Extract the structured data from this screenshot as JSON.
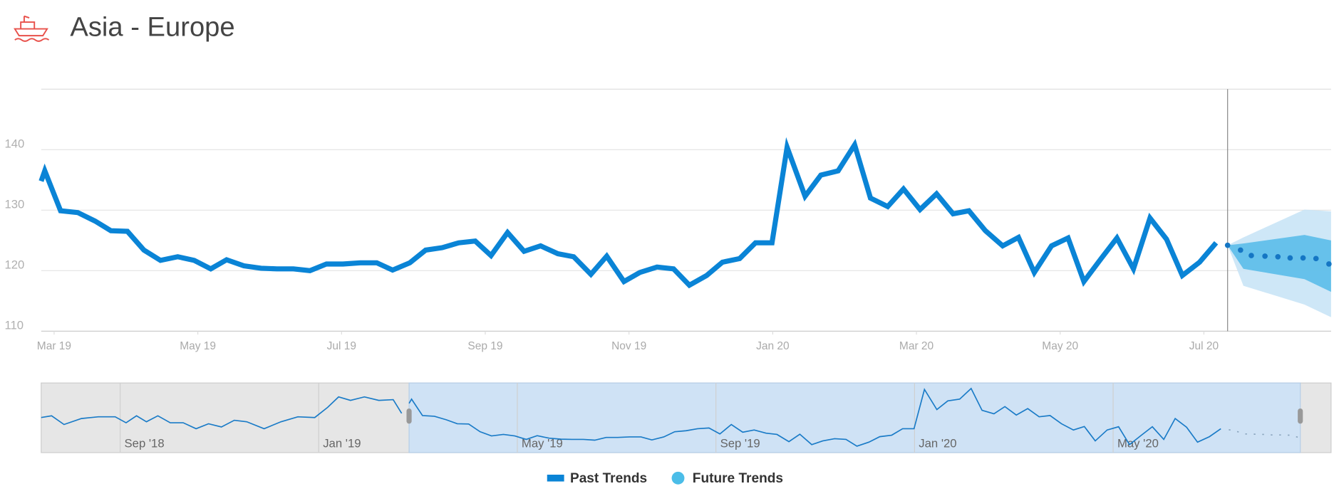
{
  "chart_data": {
    "type": "line",
    "title": "Asia - Europe",
    "xlim": [
      -0.18,
      17.77
    ],
    "ylim": [
      110,
      150
    ],
    "yticks": [
      110,
      120,
      130,
      140
    ],
    "xticks": [
      {
        "value": 0,
        "label": "Mar 19"
      },
      {
        "value": 2,
        "label": "May 19"
      },
      {
        "value": 4,
        "label": "Jul 19"
      },
      {
        "value": 6,
        "label": "Sep 19"
      },
      {
        "value": 8,
        "label": "Nov 19"
      },
      {
        "value": 10,
        "label": "Jan 20"
      },
      {
        "value": 12,
        "label": "Mar 20"
      },
      {
        "value": 14,
        "label": "May 20"
      },
      {
        "value": 16,
        "label": "Jul 20"
      }
    ],
    "grid": true,
    "series": [
      {
        "name": "Past Trends",
        "color": "#0a84d6",
        "x": [
          -0.18,
          -0.13,
          0.09,
          0.33,
          0.57,
          0.79,
          1.02,
          1.25,
          1.48,
          1.72,
          1.95,
          2.18,
          2.4,
          2.64,
          2.88,
          3.1,
          3.33,
          3.56,
          3.79,
          4.02,
          4.26,
          4.49,
          4.71,
          4.95,
          5.17,
          5.4,
          5.63,
          5.86,
          6.08,
          6.31,
          6.54,
          6.77,
          7.01,
          7.23,
          7.47,
          7.69,
          7.93,
          8.15,
          8.39,
          8.62,
          8.84,
          9.08,
          9.3,
          9.54,
          9.76,
          9.99,
          10.2,
          10.45,
          10.67,
          10.91,
          11.14,
          11.36,
          11.6,
          11.82,
          12.05,
          12.28,
          12.51,
          12.73,
          12.96,
          13.2,
          13.42,
          13.64,
          13.88,
          14.11,
          14.33,
          14.57,
          14.79,
          15.02,
          15.25,
          15.48,
          15.7,
          15.94,
          16.17
        ],
        "values": [
          134.8,
          136.5,
          129.9,
          129.6,
          128.2,
          126.6,
          126.5,
          123.4,
          121.7,
          122.3,
          121.7,
          120.3,
          121.8,
          120.8,
          120.4,
          120.3,
          120.3,
          120.0,
          121.1,
          121.1,
          121.3,
          121.3,
          120.1,
          121.3,
          123.4,
          123.8,
          124.6,
          124.9,
          122.5,
          126.3,
          123.2,
          124.1,
          122.8,
          122.3,
          119.4,
          122.4,
          118.2,
          119.7,
          120.6,
          120.3,
          117.6,
          119.2,
          121.4,
          122.0,
          124.6,
          124.6,
          140.4,
          132.3,
          135.8,
          136.5,
          140.8,
          132.0,
          130.6,
          133.5,
          130.1,
          132.7,
          129.4,
          129.9,
          126.6,
          124.1,
          125.5,
          119.7,
          124.1,
          125.4,
          118.2,
          122.0,
          125.4,
          120.3,
          128.7,
          125.2,
          119.2,
          121.4,
          124.6
        ]
      },
      {
        "name": "Future Trends",
        "color": "#4bbde8",
        "dot_color": "#1576c4",
        "x": [
          16.33,
          16.51,
          16.66,
          16.85,
          17.03,
          17.2,
          17.38,
          17.56,
          17.74
        ],
        "values": [
          124.2,
          123.4,
          122.5,
          122.4,
          122.3,
          122.1,
          122.1,
          122.0,
          121.1
        ]
      }
    ],
    "forecast_bands": {
      "x": [
        16.33,
        16.55,
        17.4,
        17.77
      ],
      "outer_upper": [
        124.2,
        125.5,
        130.1,
        129.8
      ],
      "outer_lower": [
        124.2,
        117.5,
        114.4,
        112.3
      ],
      "outer_color": "#c9e4f6",
      "inner_upper": [
        124.2,
        124.5,
        125.9,
        125.0
      ],
      "inner_lower": [
        124.2,
        120.3,
        118.6,
        116.5
      ],
      "inner_color": "#5bbde9"
    },
    "navigator": {
      "xlim": [
        -7.59,
        18.39
      ],
      "ylim": [
        115,
        143
      ],
      "xticks": [
        {
          "value": -6,
          "label": "Sep '18"
        },
        {
          "value": -2,
          "label": "Jan '19"
        },
        {
          "value": 2,
          "label": "May '19"
        },
        {
          "value": 6,
          "label": "Sep '19"
        },
        {
          "value": 10,
          "label": "Jan '20"
        },
        {
          "value": 14,
          "label": "May '20"
        }
      ],
      "history": {
        "x": [
          -7.59,
          -7.38,
          -7.13,
          -6.78,
          -6.44,
          -6.1,
          -5.88,
          -5.67,
          -5.47,
          -5.24,
          -4.99,
          -4.73,
          -4.47,
          -4.22,
          -3.96,
          -3.7,
          -3.45,
          -3.1,
          -2.76,
          -2.42,
          -2.08,
          -1.82,
          -1.6,
          -1.36,
          -1.08,
          -0.79,
          -0.5,
          -0.33
        ],
        "values": [
          129.1,
          129.8,
          126.3,
          128.7,
          129.4,
          129.4,
          127.0,
          129.8,
          127.4,
          129.8,
          127.0,
          127.0,
          124.6,
          126.6,
          125.3,
          128.0,
          127.4,
          124.6,
          127.4,
          129.4,
          129.1,
          133.2,
          137.4,
          136.0,
          137.4,
          136.0,
          136.3,
          130.8
        ]
      },
      "line_color": "#1a7bc7"
    }
  }
}
